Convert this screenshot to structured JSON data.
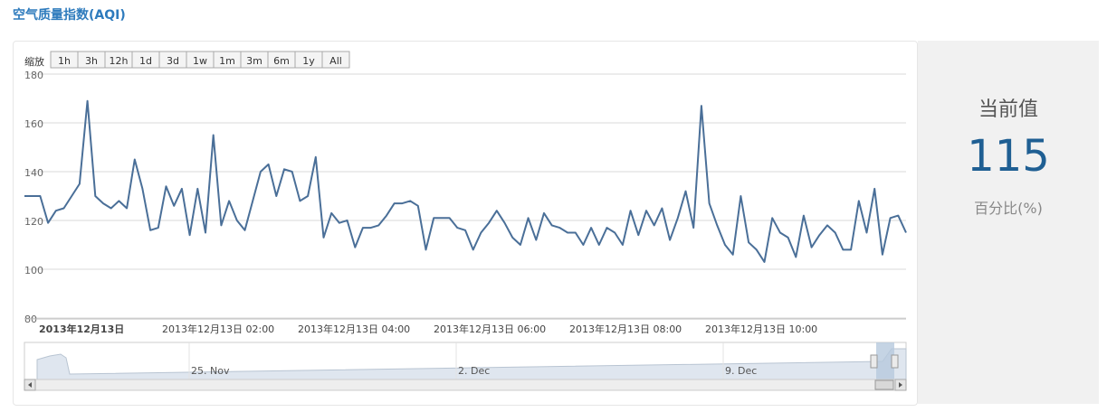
{
  "header": {
    "title": "空气质量指数(AQI)"
  },
  "zoom": {
    "label": "缩放",
    "buttons": [
      "1h",
      "3h",
      "12h",
      "1d",
      "3d",
      "1w",
      "1m",
      "3m",
      "6m",
      "1y",
      "All"
    ]
  },
  "current": {
    "title": "当前值",
    "value": "115",
    "unit": "百分比(%)"
  },
  "colors": {
    "line": "#4a6f98",
    "navigator_fill": "#dfe6ef",
    "selection": "#b7c9dd",
    "accent": "#2e7bbd"
  },
  "chart_data": {
    "type": "line",
    "title": "",
    "ylim": [
      80,
      180
    ],
    "yticks": [
      80,
      100,
      120,
      140,
      160,
      180
    ],
    "grid": true,
    "x_tick_labels": [
      "2013年12月13日",
      "2013年12月13日 02:00",
      "2013年12月13日 04:00",
      "2013年12月13日 06:00",
      "2013年12月13日 08:00",
      "2013年12月13日 10:00"
    ],
    "series": [
      {
        "values": [
          130,
          130,
          130,
          119,
          124,
          125,
          130,
          135,
          169,
          130,
          127,
          125,
          128,
          125,
          145,
          133,
          116,
          117,
          134,
          126,
          133,
          114,
          133,
          115,
          155,
          118,
          128,
          120,
          116,
          128,
          140,
          143,
          130,
          141,
          140,
          128,
          130,
          146,
          113,
          123,
          119,
          120,
          109,
          117,
          117,
          118,
          122,
          127,
          127,
          128,
          126,
          108,
          121,
          121,
          121,
          117,
          116,
          108,
          115,
          119,
          124,
          119,
          113,
          110,
          121,
          112,
          123,
          118,
          117,
          115,
          115,
          110,
          117,
          110,
          117,
          115,
          110,
          124,
          114,
          124,
          118,
          125,
          112,
          121,
          132,
          117,
          167,
          127,
          118,
          110,
          106,
          130,
          111,
          108,
          103,
          121,
          115,
          113,
          105,
          122,
          109,
          114,
          118,
          115,
          108,
          108,
          128,
          115,
          133,
          106,
          121,
          122,
          115
        ],
        "last_value": 115
      }
    ],
    "navigator": {
      "labels": [
        "25. Nov",
        "2. Dec",
        "9. Dec"
      ]
    }
  }
}
